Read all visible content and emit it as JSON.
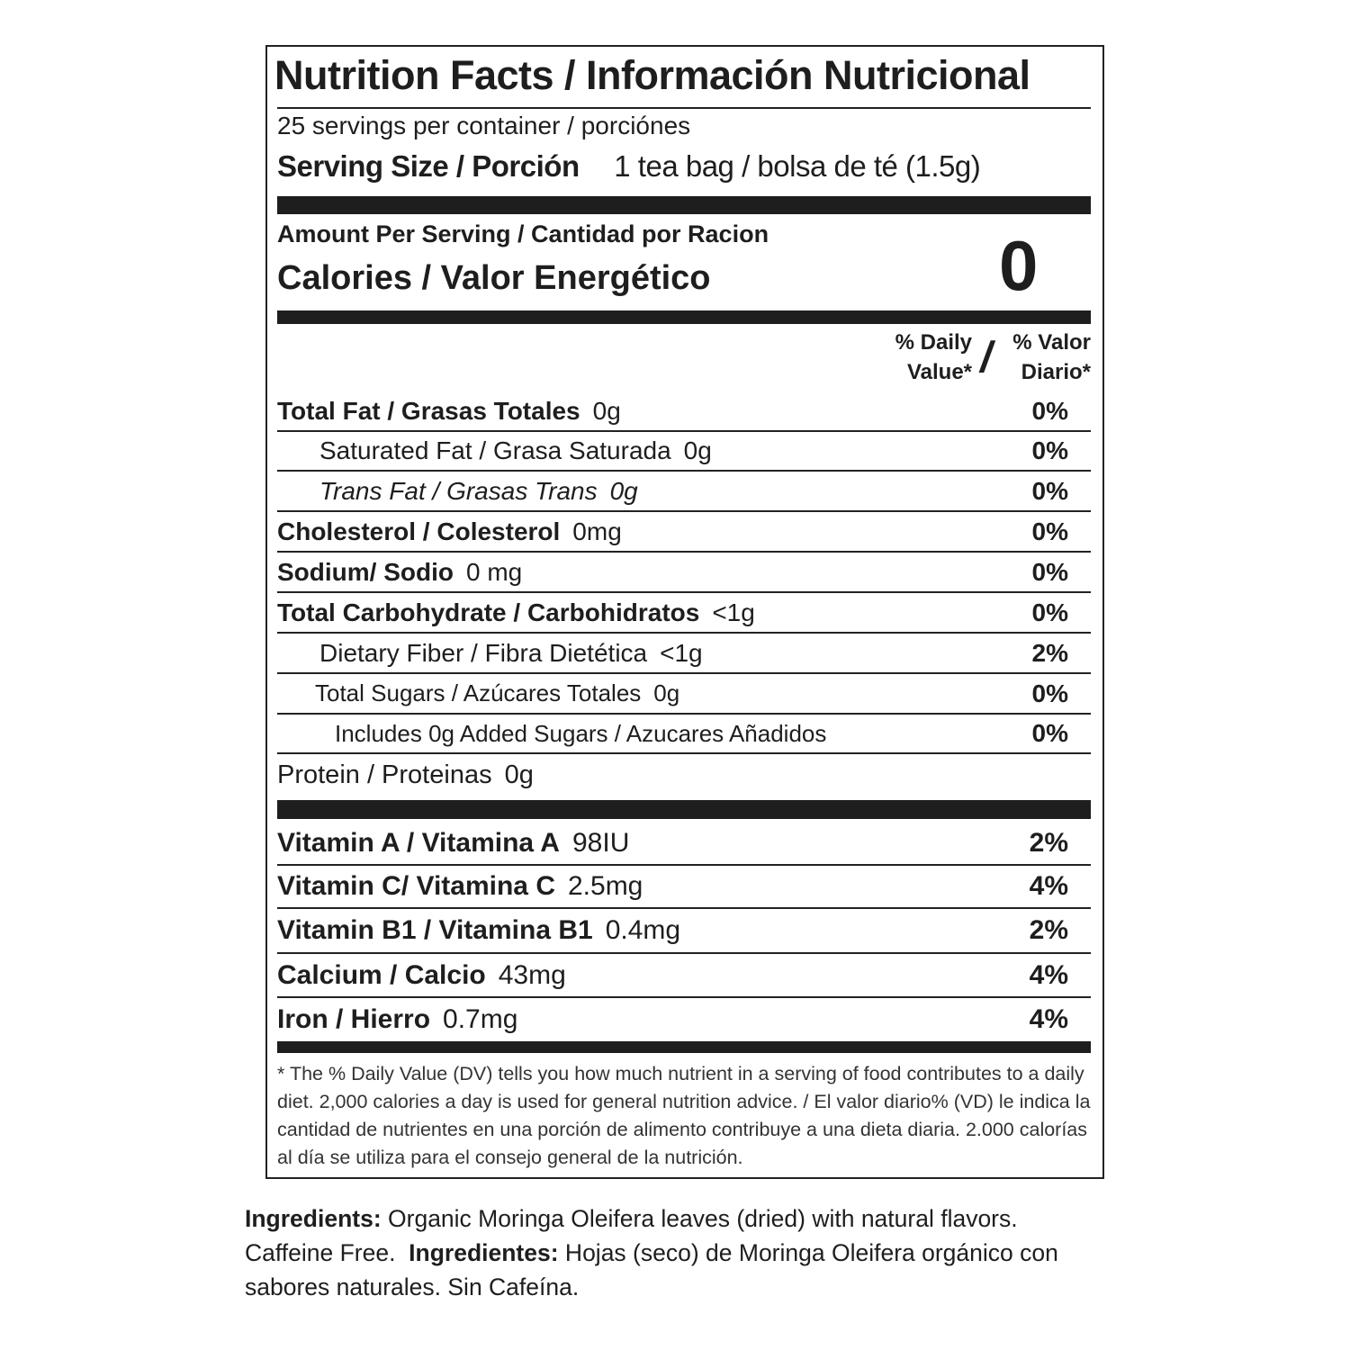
{
  "label": {
    "title": "Nutrition Facts / Información Nutricional",
    "servings": "25 servings per container / porciónes",
    "serving_size_label": "Serving Size / Porción",
    "serving_size_value": "1 tea bag / bolsa de té (1.5g)",
    "amount_per_serving": "Amount Per Serving / Cantidad por Racion",
    "calories_label": "Calories / Valor Energético",
    "calories_value": "0",
    "dv_header_en_1": "% Daily",
    "dv_header_en_2": "Value*",
    "dv_header_slash": "/",
    "dv_header_es_1": "% Valor",
    "dv_header_es_2": "Diario*",
    "nutrients": [
      {
        "name": "Total Fat / Grasas Totales",
        "value": "0g",
        "dv": "0%"
      },
      {
        "name": "Saturated Fat / Grasa Saturada",
        "value": "0g",
        "dv": "0%"
      },
      {
        "name": "Trans Fat / Grasas Trans",
        "value": "0g",
        "dv": "0%"
      },
      {
        "name": "Cholesterol / Colesterol",
        "value": "0mg",
        "dv": "0%"
      },
      {
        "name": "Sodium/ Sodio",
        "value": "0 mg",
        "dv": "0%"
      },
      {
        "name": "Total Carbohydrate / Carbohidratos",
        "value": "<1g",
        "dv": "0%"
      },
      {
        "name": "Dietary Fiber / Fibra Dietética",
        "value": "<1g",
        "dv": "2%"
      },
      {
        "name": "Total Sugars / Azúcares Totales",
        "value": "0g",
        "dv": "0%"
      },
      {
        "name": "Includes 0g Added Sugars / Azucares Añadidos",
        "value": "",
        "dv": "0%"
      },
      {
        "name": "Protein / Proteinas",
        "value": "0g",
        "dv": ""
      }
    ],
    "vitamins": [
      {
        "name": "Vitamin A / Vitamina A",
        "value": "98IU",
        "dv": "2%"
      },
      {
        "name": "Vitamin C/ Vitamina C",
        "value": "2.5mg",
        "dv": "4%"
      },
      {
        "name": "Vitamin B1 / Vitamina B1",
        "value": "0.4mg",
        "dv": "2%"
      },
      {
        "name": "Calcium / Calcio",
        "value": "43mg",
        "dv": "4%"
      },
      {
        "name": "Iron / Hierro",
        "value": "0.7mg",
        "dv": "4%"
      }
    ],
    "footnote": "* The % Daily Value (DV) tells you how much nutrient in a serving of food contributes to a daily diet. 2,000 calories a day is used for general nutrition advice. / El valor diario% (VD) le indica la cantidad de nutrientes en una porción de alimento contribuye a una dieta diaria. 2.000 calorías al día se utiliza para el consejo general de la nutrición."
  },
  "ingredients": {
    "label_en": "Ingredients:",
    "text_en": " Organic Moringa Oleifera leaves (dried) with natural flavors. Caffeine Free.  ",
    "label_es": "Ingredientes:",
    "text_es": " Hojas (seco) de Moringa Oleifera orgánico con sabores naturales. Sin Cafeína."
  }
}
